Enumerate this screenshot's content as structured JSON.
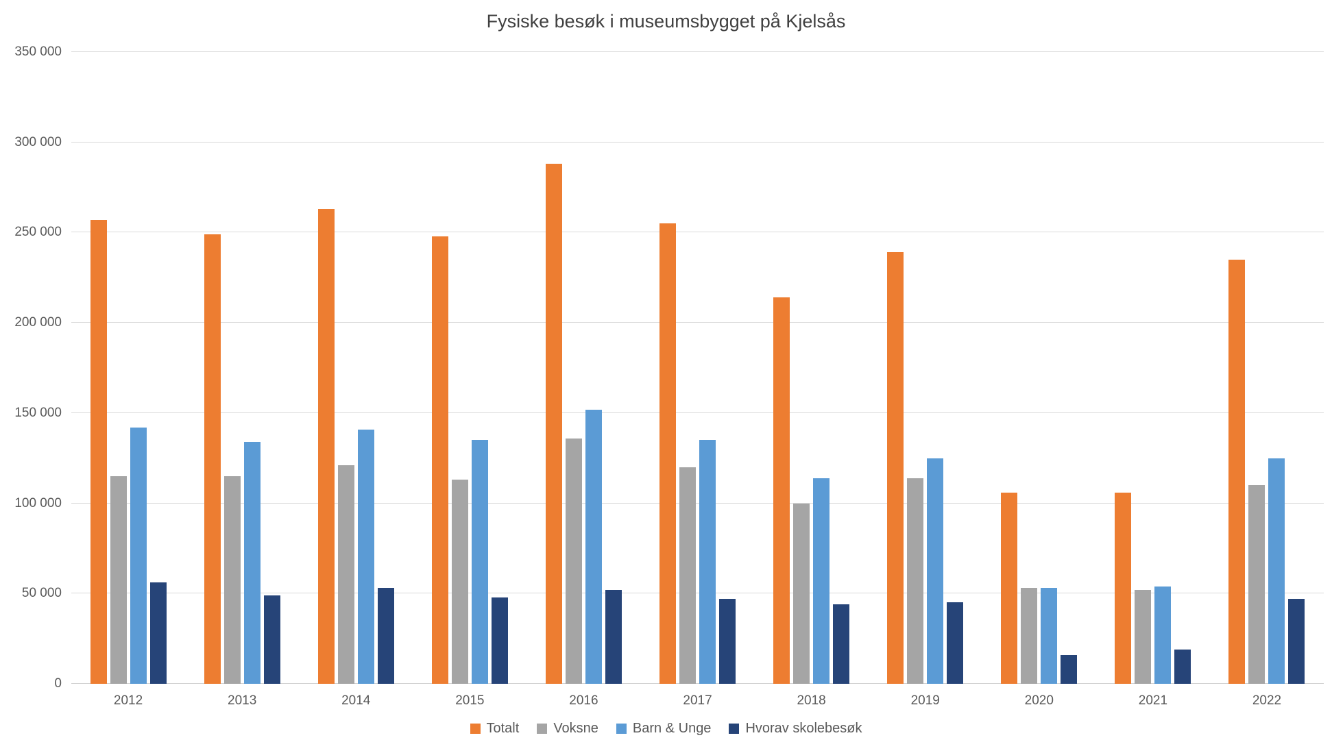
{
  "chart_data": {
    "type": "bar",
    "title": "Fysiske besøk i museumsbygget på Kjelsås",
    "categories": [
      "2012",
      "2013",
      "2014",
      "2015",
      "2016",
      "2017",
      "2018",
      "2019",
      "2020",
      "2021",
      "2022"
    ],
    "series": [
      {
        "name": "Totalt",
        "color": "#ED7D31",
        "values": [
          257000,
          249000,
          263000,
          248000,
          288000,
          255000,
          214000,
          239000,
          106000,
          106000,
          235000
        ]
      },
      {
        "name": "Voksne",
        "color": "#A5A5A5",
        "values": [
          115000,
          115000,
          121000,
          113000,
          136000,
          120000,
          100000,
          114000,
          53000,
          52000,
          110000
        ]
      },
      {
        "name": "Barn & Unge",
        "color": "#5B9BD5",
        "values": [
          142000,
          134000,
          141000,
          135000,
          152000,
          135000,
          114000,
          125000,
          53000,
          54000,
          125000
        ]
      },
      {
        "name": "Hvorav skolebesøk",
        "color": "#264478",
        "values": [
          56000,
          49000,
          53000,
          48000,
          52000,
          47000,
          44000,
          45000,
          16000,
          19000,
          47000
        ]
      }
    ],
    "xlabel": "",
    "ylabel": "",
    "ylim": [
      0,
      350000
    ],
    "yticks": [
      0,
      50000,
      100000,
      150000,
      200000,
      250000,
      300000,
      350000
    ],
    "ytick_labels": [
      "0",
      "50 000",
      "100 000",
      "150 000",
      "200 000",
      "250 000",
      "300 000",
      "350 000"
    ],
    "grid": true,
    "legend_position": "bottom"
  },
  "colors": {
    "background": "#FFFFFF",
    "gridline": "#D9D9D9",
    "title_text": "#404040",
    "axis_text": "#595959"
  }
}
